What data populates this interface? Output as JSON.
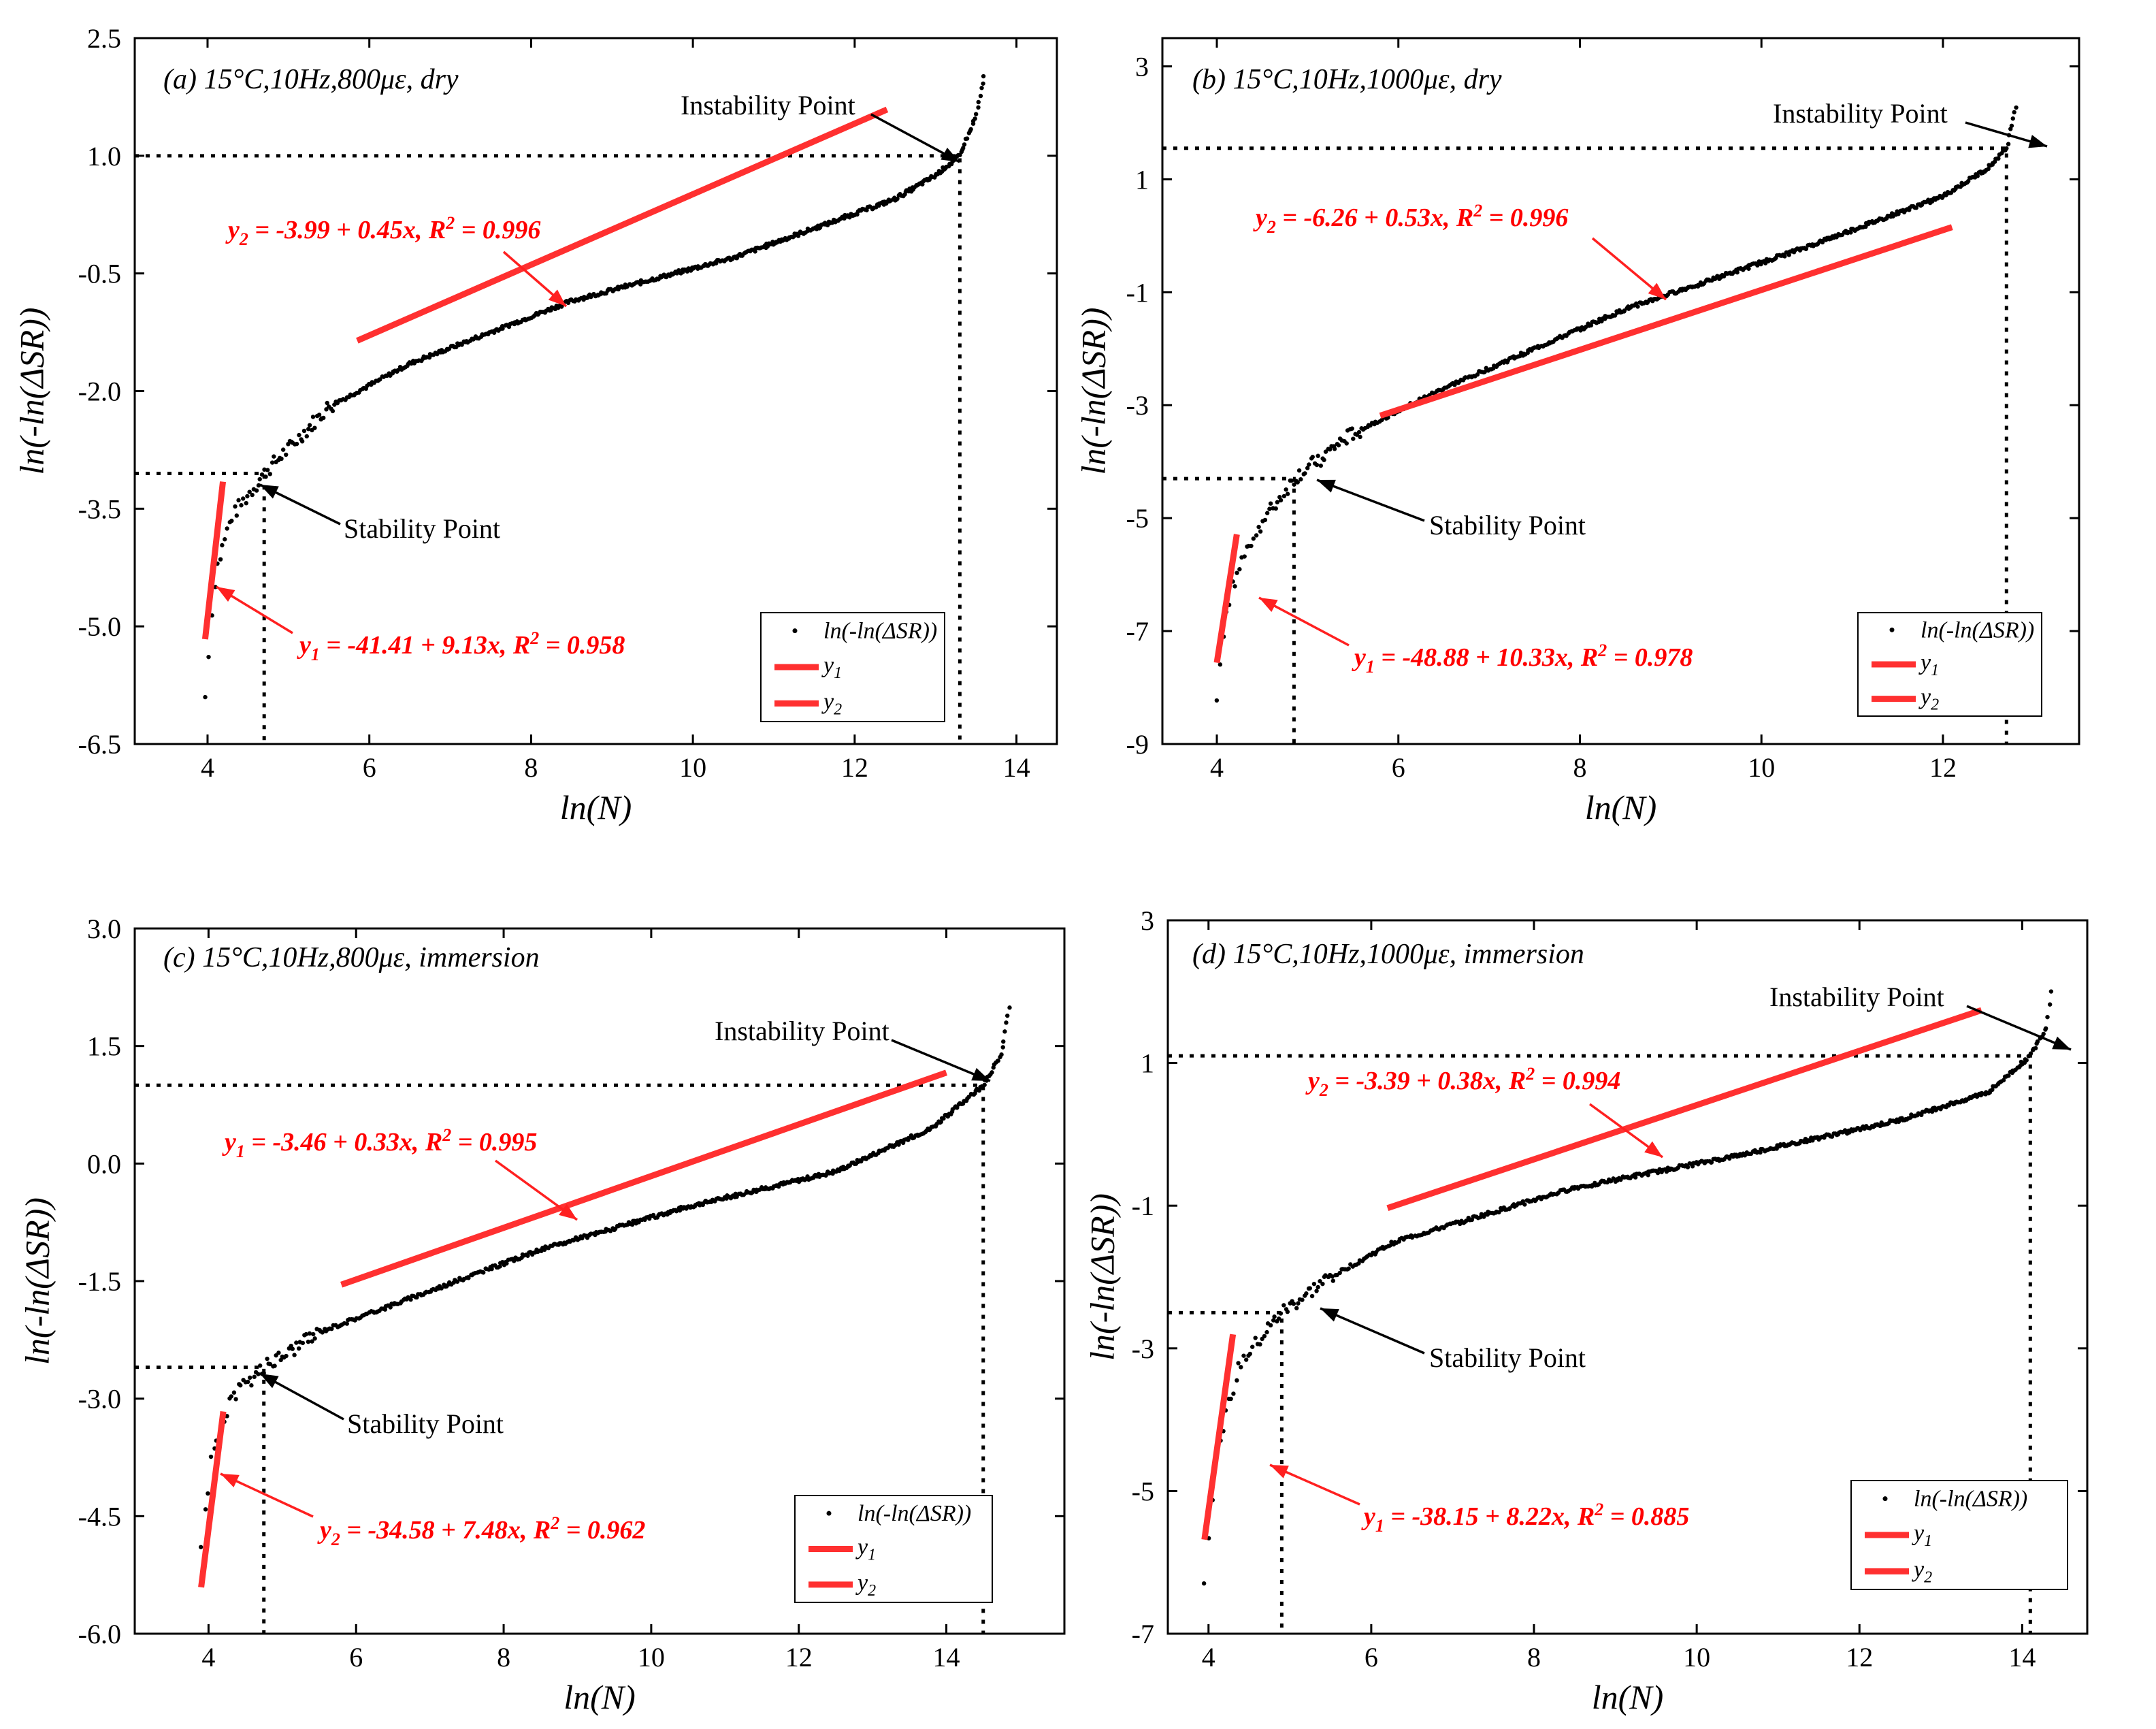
{
  "colors": {
    "data": "#000000",
    "fit": "#ff3030",
    "equation": "#ff0000"
  },
  "chart_data": [
    {
      "type": "scatter",
      "title": "(a) 15°C,10Hz,800με, dry",
      "xlabel": "ln(N)",
      "ylabel": "ln(-ln(ΔSR))",
      "xlim": [
        3.1,
        14.5
      ],
      "ylim": [
        -6.5,
        2.5
      ],
      "xticks": [
        4,
        6,
        8,
        10,
        12,
        14
      ],
      "yticks": [
        2.5,
        1.0,
        -0.5,
        -2.0,
        -3.5,
        -5.0,
        -6.5
      ],
      "ytick_labels": [
        "2.5",
        "1.0",
        "-0.5",
        "-2.0",
        "-3.5",
        "-5.0",
        "-6.5"
      ],
      "ytick_decimals": 1,
      "stability_point": {
        "label": "Stability Point",
        "x": 4.7,
        "y": -3.05
      },
      "instability_point": {
        "label": "Instability Point",
        "x": 13.3,
        "y": 1.0
      },
      "fits": [
        {
          "name": "y1",
          "intercept": -41.41,
          "slope": 9.13,
          "x_range": [
            3.97,
            4.19
          ],
          "equation": "y1 = -41.41 + 9.13x, R2 = 0.958",
          "r2": 0.958
        },
        {
          "name": "y2",
          "intercept": -3.99,
          "slope": 0.45,
          "x_range": [
            5.85,
            12.4
          ],
          "equation": "y2 = -3.99 + 0.45x, R2 = 0.996",
          "r2": 0.996
        }
      ],
      "curve": {
        "x": [
          3.97,
          4.1,
          4.3,
          4.7,
          5.5,
          6.5,
          8.5,
          10.5,
          12.5,
          13.0,
          13.3,
          13.5,
          13.6
        ],
        "y": [
          -5.9,
          -4.3,
          -3.6,
          -3.05,
          -2.2,
          -1.65,
          -0.85,
          -0.3,
          0.45,
          0.75,
          1.0,
          1.5,
          2.0
        ]
      },
      "legend": [
        "ln(-ln(ΔSR))",
        "y1",
        "y2"
      ]
    },
    {
      "type": "scatter",
      "title": "(b) 15°C,10Hz,1000με, dry",
      "xlabel": "ln(N)",
      "ylabel": "ln(-ln(ΔSR))",
      "xlim": [
        3.4,
        13.5
      ],
      "ylim": [
        -9,
        3.5
      ],
      "xticks": [
        4,
        6,
        8,
        10,
        12
      ],
      "yticks": [
        3,
        1,
        -1,
        -3,
        -5,
        -7,
        -9
      ],
      "ytick_labels": [
        "3",
        "1",
        "-1",
        "-3",
        "-5",
        "-7",
        "-9"
      ],
      "ytick_decimals": 0,
      "stability_point": {
        "label": "Stability Point",
        "x": 4.85,
        "y": -4.3
      },
      "instability_point": {
        "label": "Instability Point",
        "x": 12.7,
        "y": 1.55
      },
      "fits": [
        {
          "name": "y1",
          "intercept": -48.88,
          "slope": 10.33,
          "x_range": [
            4.0,
            4.22
          ],
          "equation": "y1 = -48.88 + 10.33x, R2 = 0.978",
          "r2": 0.978
        },
        {
          "name": "y2",
          "intercept": -6.26,
          "slope": 0.53,
          "x_range": [
            5.8,
            12.1
          ],
          "equation": "y2 = -6.26 + 0.53x, R2 = 0.996",
          "r2": 0.996
        }
      ],
      "curve": {
        "x": [
          4.0,
          4.15,
          4.4,
          4.85,
          5.5,
          6.5,
          8.5,
          10.5,
          12.0,
          12.5,
          12.7,
          12.8
        ],
        "y": [
          -8.1,
          -6.3,
          -5.3,
          -4.3,
          -3.5,
          -2.7,
          -1.3,
          -0.2,
          0.7,
          1.2,
          1.55,
          2.3
        ]
      },
      "legend": [
        "ln(-ln(ΔSR))",
        "y1",
        "y2"
      ]
    },
    {
      "type": "scatter",
      "title": "(c) 15°C,10Hz,800με, immersion",
      "xlabel": "ln(N)",
      "ylabel": "ln(-ln(ΔSR))",
      "xlim": [
        3.0,
        15.6
      ],
      "ylim": [
        -6.0,
        3.0
      ],
      "xticks": [
        4,
        6,
        8,
        10,
        12,
        14
      ],
      "yticks": [
        3.0,
        1.5,
        0.0,
        -1.5,
        -3.0,
        -4.5,
        -6.0
      ],
      "ytick_labels": [
        "3.0",
        "1.5",
        "0.0",
        "-1.5",
        "-3.0",
        "-4.5",
        "-6.0"
      ],
      "ytick_decimals": 1,
      "stability_point": {
        "label": "Stability Point",
        "x": 4.75,
        "y": -2.6
      },
      "instability_point": {
        "label": "Instability Point",
        "x": 14.5,
        "y": 1.0
      },
      "fits": [
        {
          "name": "y2",
          "intercept": -34.58,
          "slope": 7.48,
          "x_range": [
            3.9,
            4.2
          ],
          "equation": "y2 = -34.58 + 7.48x, R2 = 0.962",
          "r2": 0.962
        },
        {
          "name": "y1",
          "intercept": -3.46,
          "slope": 0.33,
          "x_range": [
            5.8,
            14.0
          ],
          "equation": "y1 = -3.46 + 0.33x, R2 = 0.995",
          "r2": 0.995
        }
      ],
      "curve": {
        "x": [
          3.9,
          4.05,
          4.3,
          4.75,
          5.5,
          6.5,
          8.5,
          10.5,
          12.5,
          13.8,
          14.5,
          14.75,
          14.85
        ],
        "y": [
          -4.9,
          -3.7,
          -3.0,
          -2.6,
          -2.15,
          -1.8,
          -1.1,
          -0.55,
          -0.1,
          0.45,
          1.0,
          1.4,
          2.0
        ]
      },
      "legend": [
        "ln(-ln(ΔSR))",
        "y1",
        "y2"
      ]
    },
    {
      "type": "scatter",
      "title": "(d) 15°C,10Hz,1000με, immersion",
      "xlabel": "ln(N)",
      "ylabel": "ln(-ln(ΔSR))",
      "xlim": [
        3.5,
        14.8
      ],
      "ylim": [
        -7,
        3
      ],
      "xticks": [
        4,
        6,
        8,
        10,
        12,
        14
      ],
      "yticks": [
        3,
        1,
        -1,
        -3,
        -5,
        -7
      ],
      "ytick_labels": [
        "3",
        "1",
        "-1",
        "-3",
        "-5",
        "-7"
      ],
      "ytick_decimals": 0,
      "stability_point": {
        "label": "Stability Point",
        "x": 4.9,
        "y": -2.5
      },
      "instability_point": {
        "label": "Instability Point",
        "x": 14.1,
        "y": 1.1
      },
      "fits": [
        {
          "name": "y1",
          "intercept": -38.15,
          "slope": 8.22,
          "x_range": [
            3.95,
            4.3
          ],
          "equation": "y1 = -38.15 + 8.22x, R2 = 0.885",
          "r2": 0.885
        },
        {
          "name": "y2",
          "intercept": -3.39,
          "slope": 0.38,
          "x_range": [
            6.2,
            13.5
          ],
          "equation": "y2 = -3.39 + 0.38x, R2 = 0.994",
          "r2": 0.994
        }
      ],
      "curve": {
        "x": [
          3.95,
          4.1,
          4.4,
          4.9,
          5.5,
          6.3,
          8.5,
          10.5,
          12.5,
          13.6,
          14.1,
          14.3,
          14.35
        ],
        "y": [
          -6.2,
          -4.4,
          -3.2,
          -2.5,
          -2.0,
          -1.5,
          -0.75,
          -0.3,
          0.2,
          0.6,
          1.1,
          1.5,
          2.0
        ]
      },
      "legend": [
        "ln(-ln(ΔSR))",
        "y1",
        "y2"
      ]
    }
  ]
}
